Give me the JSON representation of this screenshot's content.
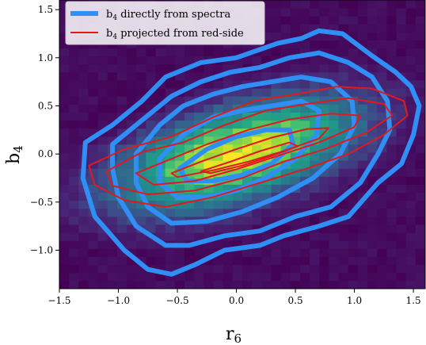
{
  "chart_data": {
    "type": "heatmap",
    "title": "",
    "xlabel": "r",
    "xlabel_sub": "6",
    "ylabel": "b",
    "ylabel_sub": "4",
    "xlim": [
      -1.5,
      1.6
    ],
    "ylim": [
      -1.4,
      1.6
    ],
    "xticks": [
      {
        "value": -1.5,
        "label": "−1.5"
      },
      {
        "value": -1.0,
        "label": "−1.0"
      },
      {
        "value": -0.5,
        "label": "−0.5"
      },
      {
        "value": 0.0,
        "label": "0.0"
      },
      {
        "value": 0.5,
        "label": "0.5"
      },
      {
        "value": 1.0,
        "label": "1.0"
      },
      {
        "value": 1.5,
        "label": "1.5"
      }
    ],
    "yticks": [
      {
        "value": -1.0,
        "label": "−1.0"
      },
      {
        "value": -0.5,
        "label": "−0.5"
      },
      {
        "value": 0.0,
        "label": "0.0"
      },
      {
        "value": 0.5,
        "label": "0.5"
      },
      {
        "value": 1.0,
        "label": "1.0"
      },
      {
        "value": 1.5,
        "label": "1.5"
      }
    ],
    "grid": false,
    "legend_position": "top-left",
    "colormap": "viridis",
    "background_color": "#440154",
    "heatmap": {
      "x_range": [
        -1.5,
        1.6
      ],
      "y_range": [
        -1.4,
        1.6
      ],
      "bins_x": 38,
      "bins_y": 36,
      "center": [
        0.0,
        0.0
      ],
      "slope": 0.4,
      "spread_major": 0.75,
      "spread_minor": 0.32
    },
    "series": [
      {
        "name": "b",
        "name_sub": "4",
        "name_rest": " directly from spectra",
        "color": "#2f8ff5",
        "linewidth": 6,
        "contours": [
          [
            [
              -1.28,
              0.12
            ],
            [
              -1.05,
              0.3
            ],
            [
              -0.8,
              0.55
            ],
            [
              -0.6,
              0.8
            ],
            [
              -0.3,
              0.95
            ],
            [
              0.0,
              1.0
            ],
            [
              0.35,
              1.15
            ],
            [
              0.55,
              1.2
            ],
            [
              0.7,
              1.28
            ],
            [
              0.9,
              1.25
            ],
            [
              1.15,
              1.02
            ],
            [
              1.35,
              0.85
            ],
            [
              1.48,
              0.7
            ],
            [
              1.55,
              0.5
            ],
            [
              1.5,
              0.2
            ],
            [
              1.4,
              -0.1
            ],
            [
              1.2,
              -0.3
            ],
            [
              0.95,
              -0.65
            ],
            [
              0.7,
              -0.75
            ],
            [
              0.4,
              -0.85
            ],
            [
              0.2,
              -0.95
            ],
            [
              -0.1,
              -1.0
            ],
            [
              -0.35,
              -1.15
            ],
            [
              -0.55,
              -1.25
            ],
            [
              -0.75,
              -1.2
            ],
            [
              -0.95,
              -1.0
            ],
            [
              -1.2,
              -0.65
            ],
            [
              -1.3,
              -0.25
            ],
            [
              -1.28,
              0.12
            ]
          ],
          [
            [
              -1.05,
              0.1
            ],
            [
              -0.8,
              0.35
            ],
            [
              -0.55,
              0.6
            ],
            [
              -0.3,
              0.75
            ],
            [
              -0.05,
              0.85
            ],
            [
              0.2,
              0.9
            ],
            [
              0.45,
              1.0
            ],
            [
              0.7,
              1.05
            ],
            [
              0.95,
              0.95
            ],
            [
              1.15,
              0.8
            ],
            [
              1.28,
              0.55
            ],
            [
              1.3,
              0.25
            ],
            [
              1.2,
              0.0
            ],
            [
              1.05,
              -0.3
            ],
            [
              0.8,
              -0.55
            ],
            [
              0.5,
              -0.65
            ],
            [
              0.2,
              -0.8
            ],
            [
              -0.1,
              -0.85
            ],
            [
              -0.4,
              -0.95
            ],
            [
              -0.6,
              -0.95
            ],
            [
              -0.85,
              -0.75
            ],
            [
              -1.0,
              -0.45
            ],
            [
              -1.05,
              -0.15
            ],
            [
              -1.05,
              0.1
            ]
          ],
          [
            [
              -0.85,
              0.0
            ],
            [
              -0.65,
              0.3
            ],
            [
              -0.45,
              0.5
            ],
            [
              -0.2,
              0.62
            ],
            [
              0.05,
              0.7
            ],
            [
              0.3,
              0.75
            ],
            [
              0.55,
              0.8
            ],
            [
              0.8,
              0.75
            ],
            [
              0.98,
              0.55
            ],
            [
              1.0,
              0.3
            ],
            [
              0.88,
              0.0
            ],
            [
              0.65,
              -0.25
            ],
            [
              0.35,
              -0.45
            ],
            [
              0.05,
              -0.6
            ],
            [
              -0.25,
              -0.7
            ],
            [
              -0.55,
              -0.72
            ],
            [
              -0.75,
              -0.55
            ],
            [
              -0.85,
              -0.3
            ],
            [
              -0.85,
              0.0
            ]
          ],
          [
            [
              -0.65,
              -0.05
            ],
            [
              -0.45,
              0.2
            ],
            [
              -0.2,
              0.38
            ],
            [
              0.05,
              0.45
            ],
            [
              0.3,
              0.5
            ],
            [
              0.55,
              0.55
            ],
            [
              0.7,
              0.45
            ],
            [
              0.68,
              0.2
            ],
            [
              0.5,
              -0.05
            ],
            [
              0.25,
              -0.25
            ],
            [
              0.0,
              -0.38
            ],
            [
              -0.25,
              -0.45
            ],
            [
              -0.5,
              -0.45
            ],
            [
              -0.65,
              -0.3
            ],
            [
              -0.65,
              -0.05
            ]
          ],
          [
            [
              -0.48,
              -0.15
            ],
            [
              -0.25,
              0.05
            ],
            [
              0.0,
              0.18
            ],
            [
              0.25,
              0.25
            ],
            [
              0.45,
              0.25
            ],
            [
              0.48,
              0.1
            ],
            [
              0.3,
              -0.1
            ],
            [
              0.05,
              -0.22
            ],
            [
              -0.2,
              -0.28
            ],
            [
              -0.42,
              -0.28
            ],
            [
              -0.48,
              -0.15
            ]
          ]
        ]
      },
      {
        "name": "b",
        "name_sub": "4",
        "name_rest": " projected from red-side",
        "color": "#e3181b",
        "linewidth": 2,
        "contours": [
          [
            [
              -1.25,
              -0.12
            ],
            [
              -0.95,
              0.05
            ],
            [
              -0.55,
              0.18
            ],
            [
              -0.2,
              0.38
            ],
            [
              0.15,
              0.55
            ],
            [
              0.5,
              0.62
            ],
            [
              0.85,
              0.7
            ],
            [
              1.15,
              0.68
            ],
            [
              1.42,
              0.55
            ],
            [
              1.45,
              0.4
            ],
            [
              1.25,
              0.2
            ],
            [
              0.95,
              0.0
            ],
            [
              0.6,
              -0.15
            ],
            [
              0.2,
              -0.3
            ],
            [
              -0.2,
              -0.45
            ],
            [
              -0.6,
              -0.55
            ],
            [
              -0.95,
              -0.48
            ],
            [
              -1.2,
              -0.32
            ],
            [
              -1.25,
              -0.12
            ]
          ],
          [
            [
              -1.1,
              -0.18
            ],
            [
              -0.8,
              0.02
            ],
            [
              -0.45,
              0.12
            ],
            [
              -0.1,
              0.3
            ],
            [
              0.25,
              0.45
            ],
            [
              0.6,
              0.52
            ],
            [
              0.95,
              0.58
            ],
            [
              1.25,
              0.52
            ],
            [
              1.32,
              0.4
            ],
            [
              1.1,
              0.22
            ],
            [
              0.75,
              0.05
            ],
            [
              0.4,
              -0.08
            ],
            [
              0.05,
              -0.25
            ],
            [
              -0.35,
              -0.38
            ],
            [
              -0.75,
              -0.42
            ],
            [
              -1.05,
              -0.33
            ],
            [
              -1.1,
              -0.18
            ]
          ],
          [
            [
              -0.85,
              -0.2
            ],
            [
              -0.55,
              -0.05
            ],
            [
              -0.25,
              0.1
            ],
            [
              0.1,
              0.25
            ],
            [
              0.45,
              0.36
            ],
            [
              0.8,
              0.42
            ],
            [
              1.05,
              0.4
            ],
            [
              1.0,
              0.28
            ],
            [
              0.7,
              0.12
            ],
            [
              0.35,
              -0.02
            ],
            [
              0.0,
              -0.16
            ],
            [
              -0.35,
              -0.28
            ],
            [
              -0.7,
              -0.32
            ],
            [
              -0.85,
              -0.2
            ]
          ],
          [
            [
              -0.55,
              -0.2
            ],
            [
              -0.3,
              -0.08
            ],
            [
              0.0,
              0.05
            ],
            [
              0.3,
              0.17
            ],
            [
              0.6,
              0.26
            ],
            [
              0.78,
              0.27
            ],
            [
              0.7,
              0.16
            ],
            [
              0.4,
              0.03
            ],
            [
              0.1,
              -0.08
            ],
            [
              -0.2,
              -0.17
            ],
            [
              -0.5,
              -0.24
            ],
            [
              -0.55,
              -0.2
            ]
          ],
          [
            [
              -0.3,
              -0.18
            ],
            [
              -0.05,
              -0.08
            ],
            [
              0.2,
              0.03
            ],
            [
              0.45,
              0.12
            ],
            [
              0.52,
              0.08
            ],
            [
              0.3,
              -0.02
            ],
            [
              0.05,
              -0.12
            ],
            [
              -0.22,
              -0.2
            ],
            [
              -0.3,
              -0.18
            ]
          ]
        ]
      }
    ]
  }
}
